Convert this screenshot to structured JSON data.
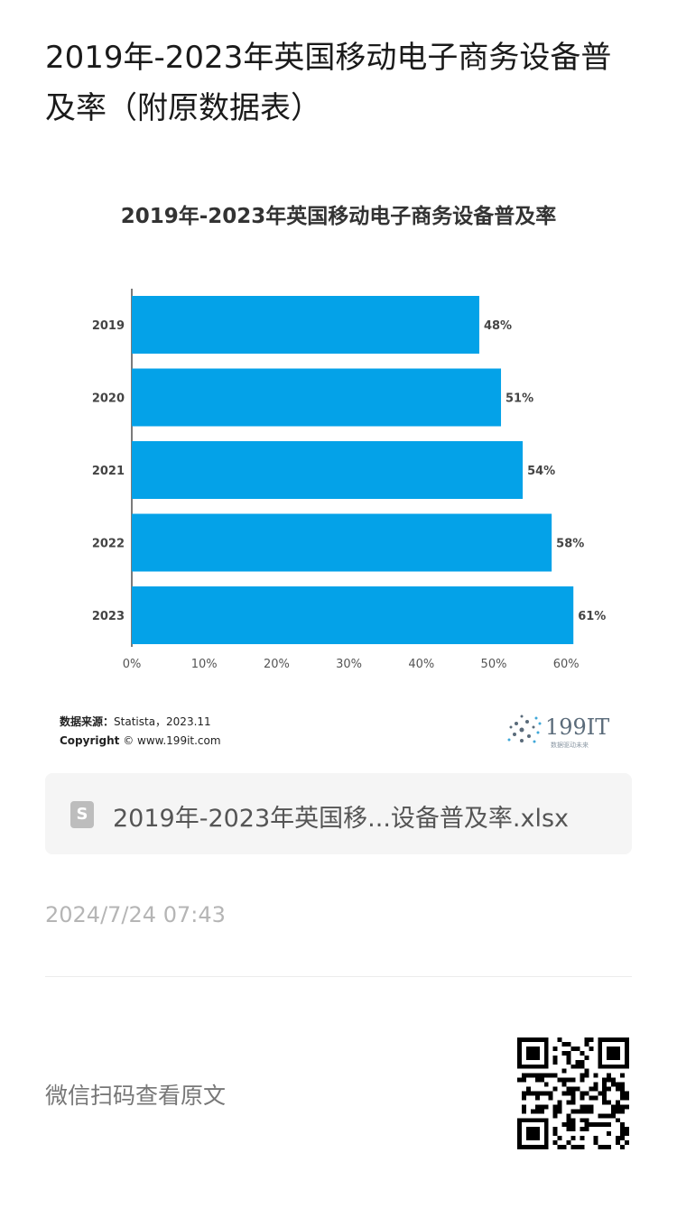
{
  "article": {
    "title": "2019年-2023年英国移动电子商务设备普及率（附原数据表）",
    "timestamp": "2024/7/24 07:43",
    "scan_prompt": "微信扫码查看原文"
  },
  "attachment": {
    "icon": "spreadsheet-s-icon",
    "icon_letter": "S",
    "file_name": "2019年-2023年英国移...设备普及率.xlsx"
  },
  "source": {
    "label": "数据来源：",
    "value": "Statista，2023.11",
    "copyright_label": "Copyright",
    "copyright_value": "© www.199it.com"
  },
  "logo": {
    "text": "199IT",
    "tagline": "数据驱动未来"
  },
  "chart_data": {
    "type": "bar",
    "orientation": "horizontal",
    "title": "2019年-2023年英国移动电子商务设备普及率",
    "categories": [
      "2019",
      "2020",
      "2021",
      "2022",
      "2023"
    ],
    "values": [
      48,
      51,
      54,
      58,
      61
    ],
    "value_labels": [
      "48%",
      "51%",
      "54%",
      "58%",
      "61%"
    ],
    "x_ticks": [
      "0%",
      "10%",
      "20%",
      "30%",
      "40%",
      "50%",
      "60%"
    ],
    "xlim": [
      0,
      61
    ],
    "xlabel": "",
    "ylabel": "",
    "grid": false,
    "colors": {
      "bar": "#04A2E8",
      "text": "#444444"
    }
  }
}
